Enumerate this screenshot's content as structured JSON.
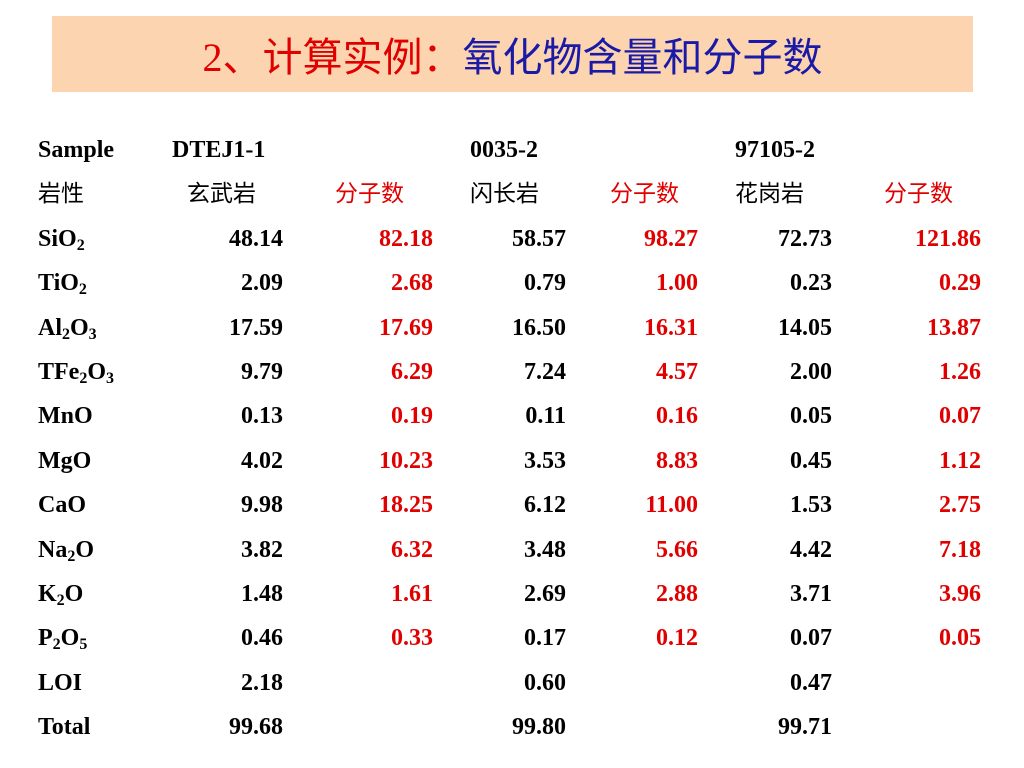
{
  "title": {
    "prefix": "2、计算实例：",
    "main": "氧化物含量和分子数"
  },
  "table": {
    "header": [
      "Sample",
      "DTEJ1-1",
      "0035-2",
      "97105-2"
    ],
    "subheader": [
      "岩性",
      "玄武岩",
      "分子数",
      "闪长岩",
      "分子数",
      "花岗岩",
      "分子数"
    ],
    "rows": [
      {
        "label": [
          "SiO",
          "2"
        ],
        "values": [
          "48.14",
          "82.18",
          "58.57",
          "98.27",
          "72.73",
          "121.86"
        ]
      },
      {
        "label": [
          "TiO",
          "2"
        ],
        "values": [
          "2.09",
          "2.68",
          "0.79",
          "1.00",
          "0.23",
          "0.29"
        ]
      },
      {
        "label": [
          "Al",
          "2",
          "O",
          "3"
        ],
        "values": [
          "17.59",
          "17.69",
          "16.50",
          "16.31",
          "14.05",
          "13.87"
        ]
      },
      {
        "label": [
          "TFe",
          "2",
          "O",
          "3"
        ],
        "values": [
          "9.79",
          "6.29",
          "7.24",
          "4.57",
          "2.00",
          "1.26"
        ]
      },
      {
        "label": [
          "MnO"
        ],
        "values": [
          "0.13",
          "0.19",
          "0.11",
          "0.16",
          "0.05",
          "0.07"
        ]
      },
      {
        "label": [
          "MgO"
        ],
        "values": [
          "4.02",
          "10.23",
          "3.53",
          "8.83",
          "0.45",
          "1.12"
        ]
      },
      {
        "label": [
          "CaO"
        ],
        "values": [
          "9.98",
          "18.25",
          "6.12",
          "11.00",
          "1.53",
          "2.75"
        ]
      },
      {
        "label": [
          "Na",
          "2",
          "O"
        ],
        "values": [
          "3.82",
          "6.32",
          "3.48",
          "5.66",
          "4.42",
          "7.18"
        ]
      },
      {
        "label": [
          "K",
          "2",
          "O"
        ],
        "values": [
          "1.48",
          "1.61",
          "2.69",
          "2.88",
          "3.71",
          "3.96"
        ]
      },
      {
        "label": [
          "P",
          "2",
          "O",
          "5"
        ],
        "values": [
          "0.46",
          "0.33",
          "0.17",
          "0.12",
          "0.07",
          "0.05"
        ]
      },
      {
        "label": [
          "LOI"
        ],
        "values": [
          "2.18",
          null,
          "0.60",
          null,
          "0.47",
          null
        ]
      },
      {
        "label": [
          "Total"
        ],
        "values": [
          "99.68",
          null,
          "99.80",
          null,
          "99.71",
          null
        ]
      }
    ]
  }
}
